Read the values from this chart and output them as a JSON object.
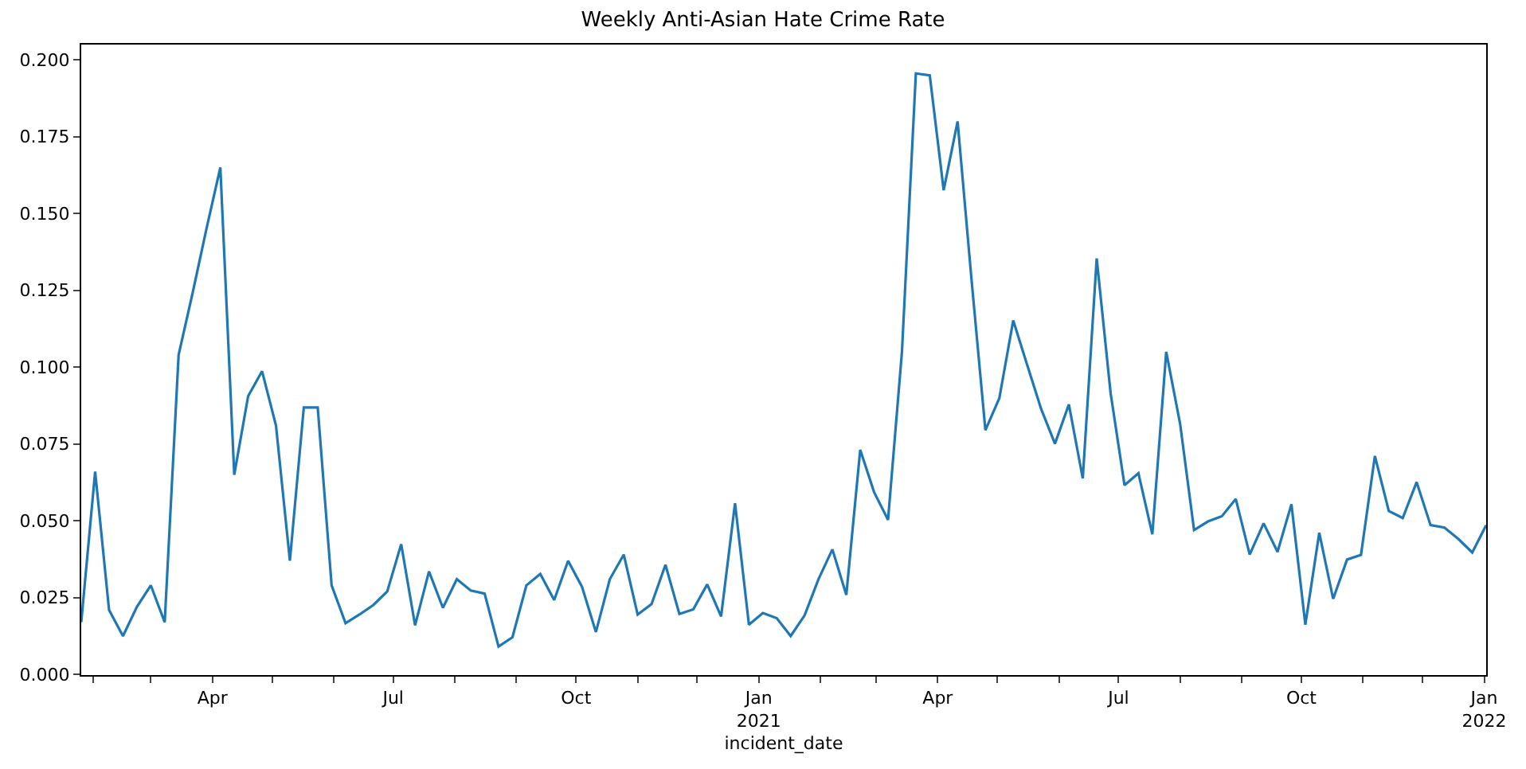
{
  "chart_data": {
    "type": "line",
    "title": "Weekly Anti-Asian Hate Crime Rate",
    "xlabel": "incident_date",
    "x": [
      "2020-01-26",
      "2020-02-02",
      "2020-02-09",
      "2020-02-16",
      "2020-02-23",
      "2020-03-01",
      "2020-03-08",
      "2020-03-15",
      "2020-03-22",
      "2020-03-29",
      "2020-04-05",
      "2020-04-12",
      "2020-04-19",
      "2020-04-26",
      "2020-05-03",
      "2020-05-10",
      "2020-05-17",
      "2020-05-24",
      "2020-05-31",
      "2020-06-07",
      "2020-06-14",
      "2020-06-21",
      "2020-06-28",
      "2020-07-05",
      "2020-07-12",
      "2020-07-19",
      "2020-07-26",
      "2020-08-02",
      "2020-08-09",
      "2020-08-16",
      "2020-08-23",
      "2020-08-30",
      "2020-09-06",
      "2020-09-13",
      "2020-09-20",
      "2020-09-27",
      "2020-10-04",
      "2020-10-11",
      "2020-10-18",
      "2020-10-25",
      "2020-11-01",
      "2020-11-08",
      "2020-11-15",
      "2020-11-22",
      "2020-11-29",
      "2020-12-06",
      "2020-12-13",
      "2020-12-20",
      "2020-12-27",
      "2021-01-03",
      "2021-01-10",
      "2021-01-17",
      "2021-01-24",
      "2021-01-31",
      "2021-02-07",
      "2021-02-14",
      "2021-02-21",
      "2021-02-28",
      "2021-03-07",
      "2021-03-14",
      "2021-03-21",
      "2021-03-28",
      "2021-04-04",
      "2021-04-11",
      "2021-04-18",
      "2021-04-25",
      "2021-05-02",
      "2021-05-09",
      "2021-05-16",
      "2021-05-23",
      "2021-05-30",
      "2021-06-06",
      "2021-06-13",
      "2021-06-20",
      "2021-06-27",
      "2021-07-04",
      "2021-07-11",
      "2021-07-18",
      "2021-07-25",
      "2021-08-01",
      "2021-08-08",
      "2021-08-15",
      "2021-08-22",
      "2021-08-29",
      "2021-09-05",
      "2021-09-12",
      "2021-09-19",
      "2021-09-26",
      "2021-10-03",
      "2021-10-10",
      "2021-10-17",
      "2021-10-24",
      "2021-10-31",
      "2021-11-07",
      "2021-11-14",
      "2021-11-21",
      "2021-11-28",
      "2021-12-05",
      "2021-12-12",
      "2021-12-19",
      "2021-12-26",
      "2022-01-02"
    ],
    "series": [
      {
        "color": "#1f77b4",
        "values": [
          0.017,
          0.066,
          0.021,
          0.0125,
          0.022,
          0.029,
          0.017,
          0.104,
          0.124,
          0.145,
          0.165,
          0.065,
          0.0906,
          0.0987,
          0.081,
          0.037,
          0.0869,
          0.0869,
          0.029,
          0.0167,
          0.0195,
          0.0226,
          0.027,
          0.0424,
          0.016,
          0.0335,
          0.0217,
          0.031,
          0.0273,
          0.0263,
          0.0091,
          0.0121,
          0.029,
          0.0327,
          0.0242,
          0.037,
          0.0285,
          0.0138,
          0.031,
          0.039,
          0.0195,
          0.0229,
          0.0357,
          0.0197,
          0.0212,
          0.0293,
          0.0189,
          0.0557,
          0.0162,
          0.02,
          0.0183,
          0.0125,
          0.0192,
          0.031,
          0.0407,
          0.0259,
          0.0731,
          0.0593,
          0.0503,
          0.105,
          0.1956,
          0.195,
          0.1576,
          0.18,
          0.1286,
          0.0795,
          0.0899,
          0.1152,
          0.1008,
          0.0865,
          0.0751,
          0.0879,
          0.0638,
          0.1354,
          0.0916,
          0.0616,
          0.0655,
          0.0456,
          0.105,
          0.0815,
          0.047,
          0.0498,
          0.0515,
          0.0571,
          0.039,
          0.0492,
          0.0399,
          0.0554,
          0.0162,
          0.0461,
          0.0246,
          0.0374,
          0.0389,
          0.0711,
          0.0532,
          0.0509,
          0.0626,
          0.0486,
          0.0478,
          0.0441,
          0.0397,
          0.0486
        ]
      }
    ],
    "xlim": [
      "2020-01-26",
      "2022-01-02"
    ],
    "xticks": [
      {
        "value": "2020-02-01",
        "label": null
      },
      {
        "value": "2020-03-01",
        "label": null
      },
      {
        "value": "2020-04-01",
        "label": "Apr"
      },
      {
        "value": "2020-05-01",
        "label": null
      },
      {
        "value": "2020-06-01",
        "label": null
      },
      {
        "value": "2020-07-01",
        "label": "Jul"
      },
      {
        "value": "2020-08-01",
        "label": null
      },
      {
        "value": "2020-09-01",
        "label": null
      },
      {
        "value": "2020-10-01",
        "label": "Oct"
      },
      {
        "value": "2020-11-01",
        "label": null
      },
      {
        "value": "2020-12-01",
        "label": null
      },
      {
        "value": "2021-01-01",
        "label": "Jan\n2021"
      },
      {
        "value": "2021-02-01",
        "label": null
      },
      {
        "value": "2021-03-01",
        "label": null
      },
      {
        "value": "2021-04-01",
        "label": "Apr"
      },
      {
        "value": "2021-05-01",
        "label": null
      },
      {
        "value": "2021-06-01",
        "label": null
      },
      {
        "value": "2021-07-01",
        "label": "Jul"
      },
      {
        "value": "2021-08-01",
        "label": null
      },
      {
        "value": "2021-09-01",
        "label": null
      },
      {
        "value": "2021-10-01",
        "label": "Oct"
      },
      {
        "value": "2021-11-01",
        "label": null
      },
      {
        "value": "2021-12-01",
        "label": null
      },
      {
        "value": "2022-01-01",
        "label": "Jan\n2022"
      }
    ],
    "ylim": [
      -0.0002,
      0.205
    ],
    "yticks": [
      {
        "value": 0,
        "label": "0.000"
      },
      {
        "value": 0.025,
        "label": "0.025"
      },
      {
        "value": 0.05,
        "label": "0.050"
      },
      {
        "value": 0.075,
        "label": "0.075"
      },
      {
        "value": 0.1,
        "label": "0.100"
      },
      {
        "value": 0.125,
        "label": "0.125"
      },
      {
        "value": 0.15,
        "label": "0.150"
      },
      {
        "value": 0.175,
        "label": "0.175"
      },
      {
        "value": 0.2,
        "label": "0.200"
      }
    ]
  }
}
